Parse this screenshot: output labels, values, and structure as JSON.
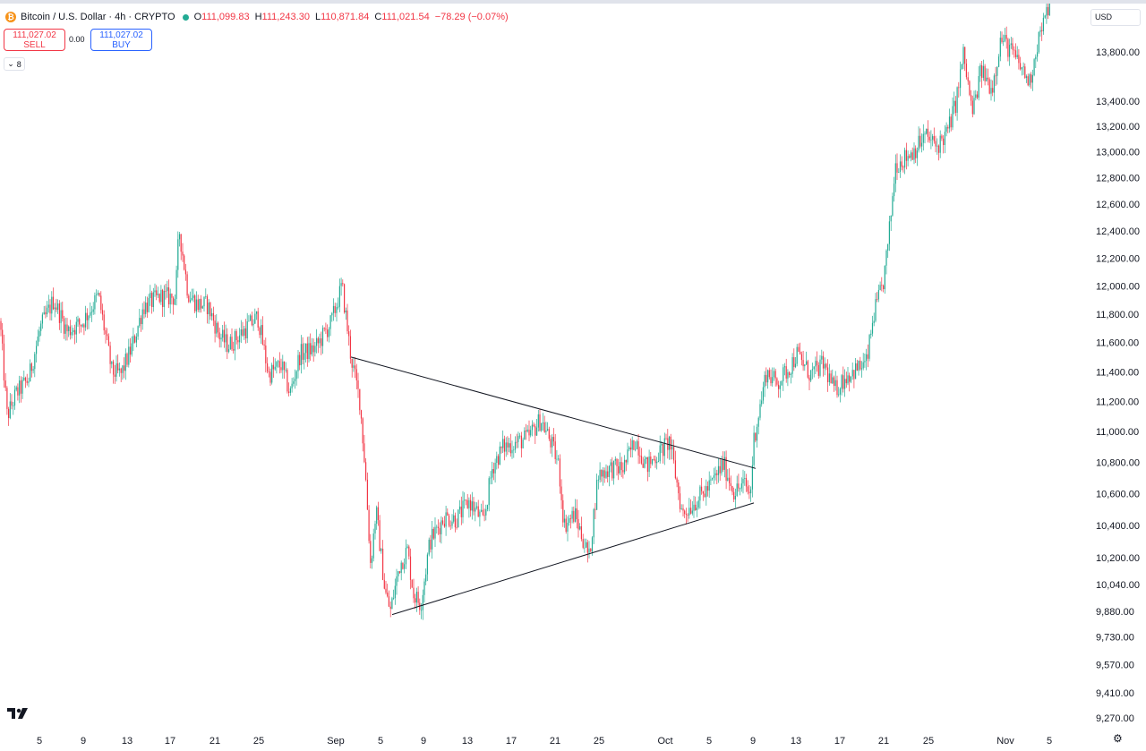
{
  "header": {
    "title": "Bitcoin / U.S. Dollar · 4h · CRYPTO",
    "coin_symbol": "₿",
    "ohlc": [
      {
        "key": "O",
        "value": "111,099.83"
      },
      {
        "key": "H",
        "value": "111,243.30"
      },
      {
        "key": "L",
        "value": "110,871.84"
      },
      {
        "key": "C",
        "value": "111,021.54"
      },
      {
        "key": "",
        "value": "−78.29 (−0.07%)"
      }
    ]
  },
  "trade": {
    "sell_price": "111,027.02",
    "sell_label": "SELL",
    "spread": "0.00",
    "buy_price": "111,027.02",
    "buy_label": "BUY",
    "indicator_count": "8"
  },
  "currency": "USD",
  "colors": {
    "up": "#22ab94",
    "down": "#f23645",
    "grid": "#f0f3fa",
    "text": "#131722",
    "trendline": "#131722"
  },
  "chart_data": {
    "type": "candlestick",
    "symbol": "Bitcoin / U.S. Dollar",
    "interval": "4h",
    "x_ticks": [
      "5",
      "9",
      "13",
      "17",
      "21",
      "25",
      "Sep",
      "5",
      "9",
      "13",
      "17",
      "21",
      "25",
      "Oct",
      "5",
      "9",
      "13",
      "17",
      "21",
      "25",
      "Nov",
      "5"
    ],
    "y_ticks": [
      "13,800.00",
      "13,400.00",
      "13,200.00",
      "13,000.00",
      "12,800.00",
      "12,600.00",
      "12,400.00",
      "12,200.00",
      "12,000.00",
      "11,800.00",
      "11,600.00",
      "11,400.00",
      "11,200.00",
      "11,000.00",
      "10,800.00",
      "10,600.00",
      "10,400.00",
      "10,200.00",
      "10,040.00",
      "9,880.00",
      "9,730.00",
      "9,570.00",
      "9,410.00",
      "9,270.00"
    ],
    "y_tick_values": [
      13800,
      13400,
      13200,
      13000,
      12800,
      12600,
      12400,
      12200,
      12000,
      11800,
      11600,
      11400,
      11200,
      11000,
      10800,
      10600,
      10400,
      10200,
      10040,
      9880,
      9730,
      9570,
      9410,
      9270
    ],
    "ylim": [
      9200,
      14100
    ],
    "y_scale": "log",
    "grid": false,
    "path_points": [
      [
        0,
        11750
      ],
      [
        8,
        11100
      ],
      [
        18,
        11250
      ],
      [
        32,
        11350
      ],
      [
        45,
        11700
      ],
      [
        60,
        11900
      ],
      [
        75,
        11680
      ],
      [
        92,
        11740
      ],
      [
        110,
        11930
      ],
      [
        125,
        11400
      ],
      [
        135,
        11380
      ],
      [
        148,
        11580
      ],
      [
        160,
        11850
      ],
      [
        178,
        11920
      ],
      [
        196,
        11920
      ],
      [
        200,
        12420
      ],
      [
        210,
        11950
      ],
      [
        220,
        11870
      ],
      [
        232,
        11860
      ],
      [
        245,
        11650
      ],
      [
        255,
        11580
      ],
      [
        272,
        11680
      ],
      [
        288,
        11780
      ],
      [
        300,
        11380
      ],
      [
        314,
        11450
      ],
      [
        324,
        11250
      ],
      [
        335,
        11520
      ],
      [
        352,
        11560
      ],
      [
        370,
        11740
      ],
      [
        382,
        12000
      ],
      [
        392,
        11500
      ],
      [
        402,
        11200
      ],
      [
        408,
        10750
      ],
      [
        414,
        10150
      ],
      [
        420,
        10500
      ],
      [
        430,
        10000
      ],
      [
        436,
        9880
      ],
      [
        446,
        10150
      ],
      [
        455,
        10250
      ],
      [
        462,
        9980
      ],
      [
        470,
        9920
      ],
      [
        480,
        10300
      ],
      [
        496,
        10450
      ],
      [
        510,
        10440
      ],
      [
        524,
        10550
      ],
      [
        540,
        10420
      ],
      [
        550,
        10770
      ],
      [
        562,
        10900
      ],
      [
        574,
        10920
      ],
      [
        590,
        10960
      ],
      [
        604,
        11080
      ],
      [
        616,
        10920
      ],
      [
        624,
        10780
      ],
      [
        630,
        10400
      ],
      [
        642,
        10470
      ],
      [
        652,
        10300
      ],
      [
        658,
        10200
      ],
      [
        668,
        10720
      ],
      [
        682,
        10760
      ],
      [
        696,
        10760
      ],
      [
        710,
        10950
      ],
      [
        722,
        10770
      ],
      [
        738,
        10870
      ],
      [
        748,
        10940
      ],
      [
        755,
        10700
      ],
      [
        762,
        10470
      ],
      [
        775,
        10540
      ],
      [
        792,
        10640
      ],
      [
        808,
        10790
      ],
      [
        820,
        10610
      ],
      [
        832,
        10660
      ],
      [
        838,
        10580
      ],
      [
        842,
        10950
      ],
      [
        850,
        11200
      ],
      [
        856,
        11400
      ],
      [
        868,
        11320
      ],
      [
        882,
        11430
      ],
      [
        890,
        11520
      ],
      [
        905,
        11380
      ],
      [
        920,
        11450
      ],
      [
        932,
        11270
      ],
      [
        945,
        11370
      ],
      [
        958,
        11420
      ],
      [
        968,
        11460
      ],
      [
        976,
        11800
      ],
      [
        986,
        12000
      ],
      [
        992,
        12300
      ],
      [
        1000,
        12900
      ],
      [
        1010,
        12950
      ],
      [
        1022,
        13020
      ],
      [
        1034,
        13130
      ],
      [
        1046,
        13040
      ],
      [
        1058,
        13150
      ],
      [
        1068,
        13400
      ],
      [
        1076,
        13780
      ],
      [
        1086,
        13300
      ],
      [
        1096,
        13650
      ],
      [
        1108,
        13500
      ],
      [
        1118,
        13920
      ],
      [
        1130,
        13800
      ],
      [
        1142,
        13650
      ],
      [
        1150,
        13550
      ],
      [
        1160,
        13920
      ],
      [
        1168,
        14080
      ],
      [
        1174,
        14300
      ]
    ],
    "trendlines": [
      {
        "name": "upper",
        "points": [
          [
            392,
            11500
          ],
          [
            844,
            10760
          ]
        ]
      },
      {
        "name": "lower",
        "points": [
          [
            438,
            9860
          ],
          [
            842,
            10540
          ]
        ]
      }
    ]
  }
}
